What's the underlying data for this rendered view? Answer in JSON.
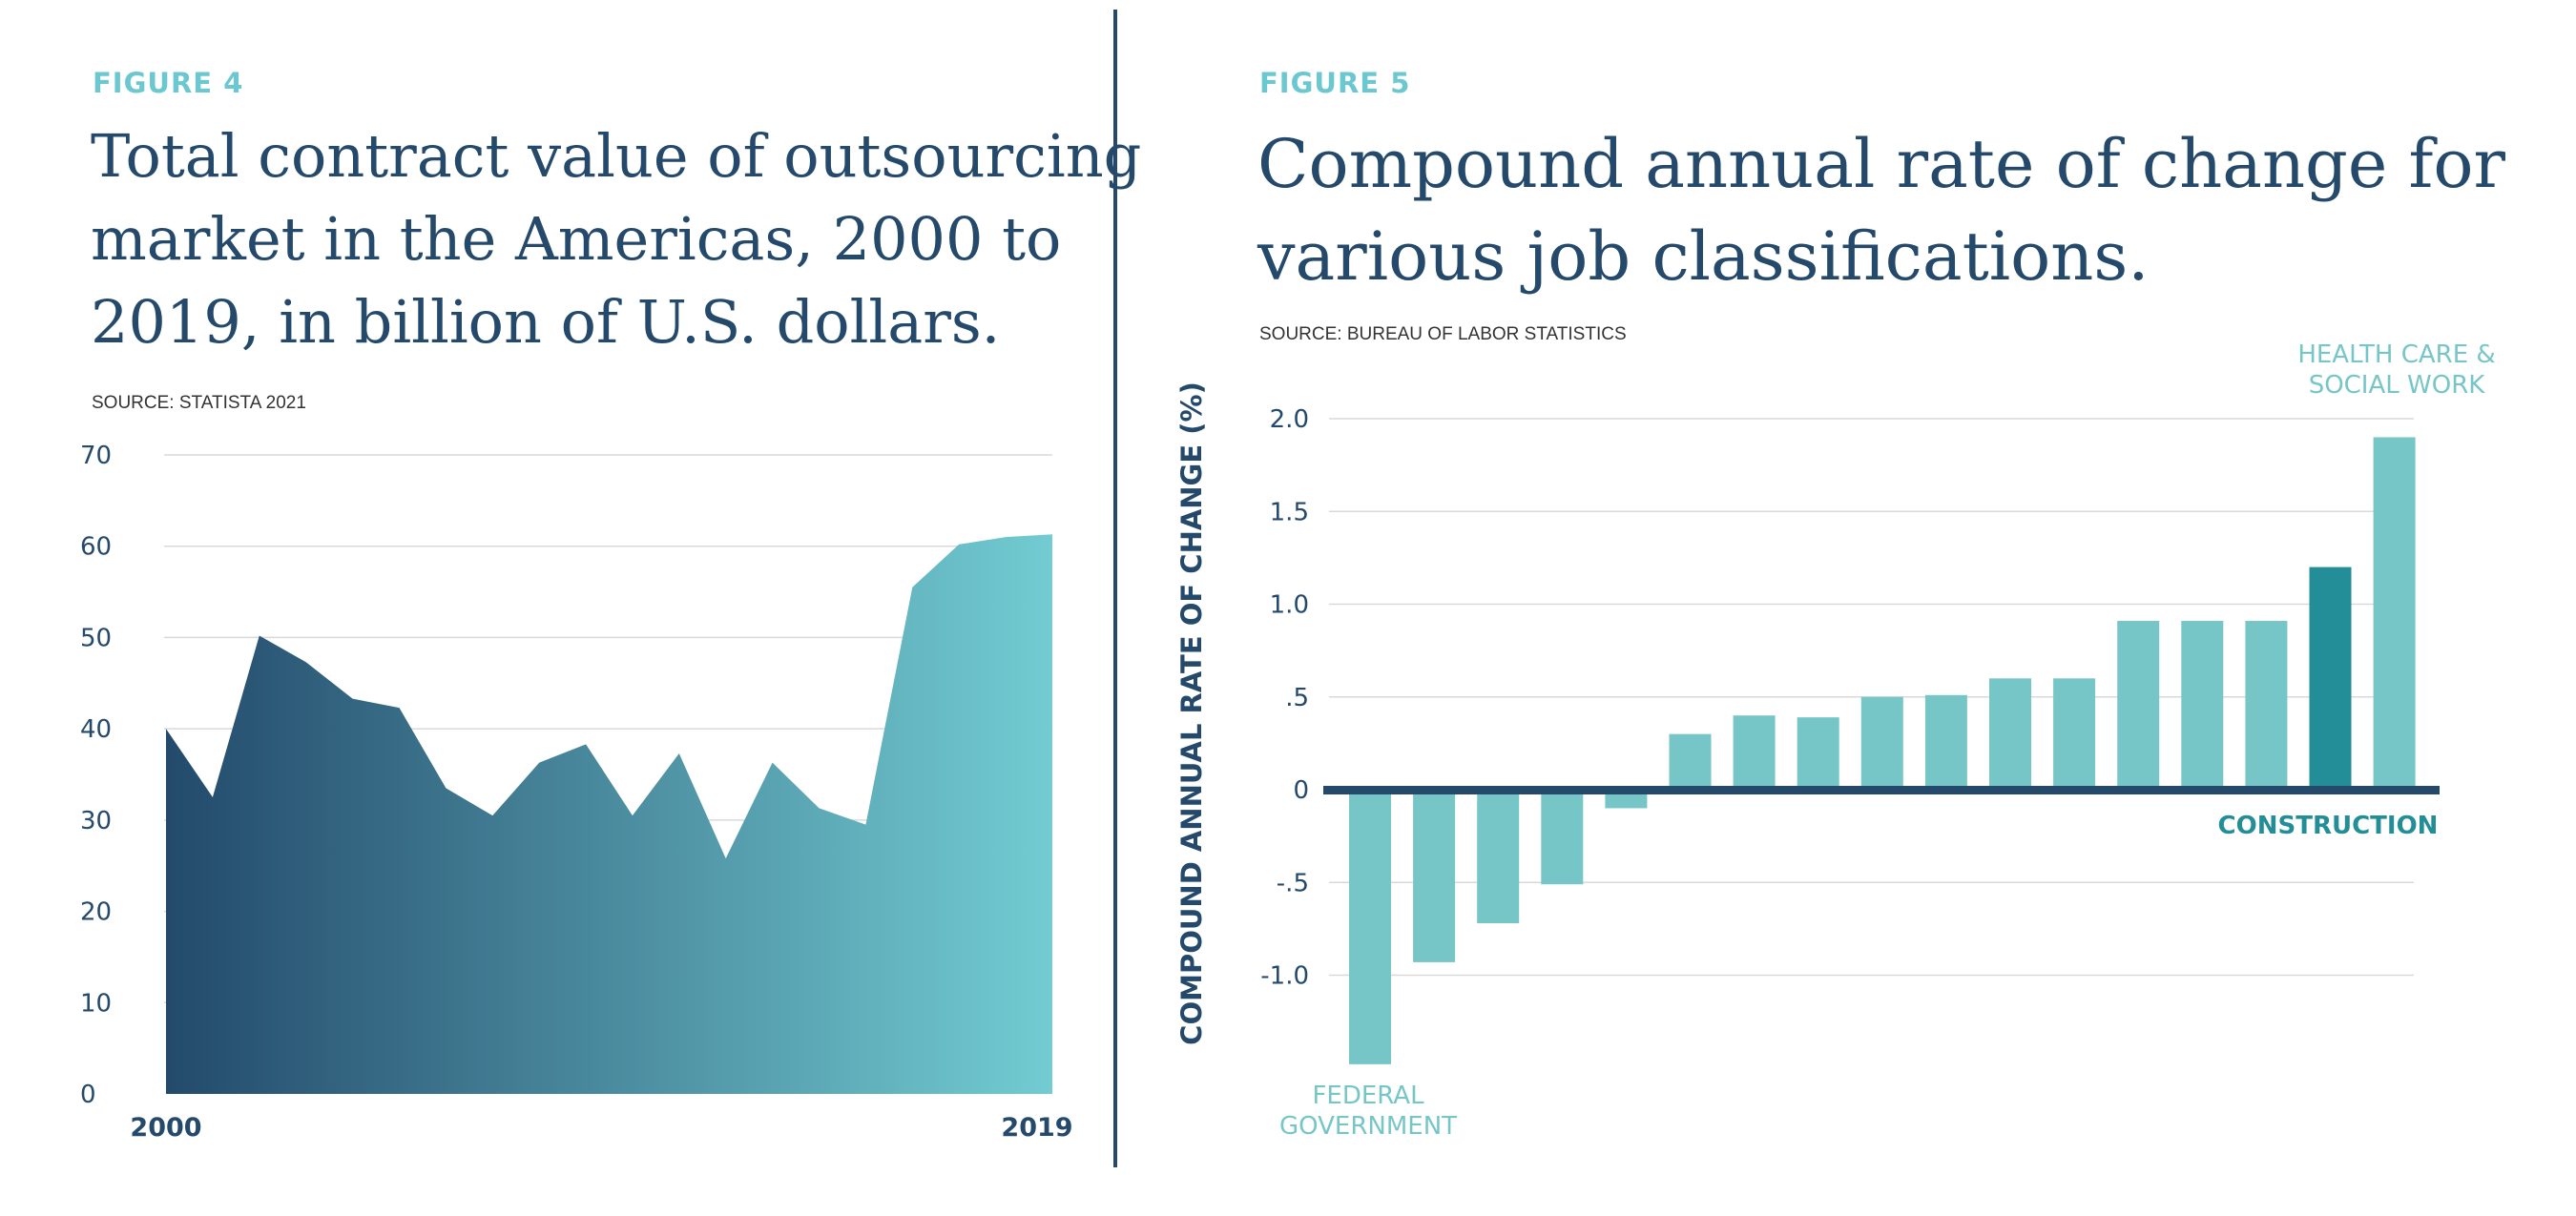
{
  "figure4": {
    "label": "FIGURE 4",
    "title_lines": [
      "Total contract value of outsourcing",
      "market in the Americas, 2000 to",
      "2019, in billion of U.S. dollars."
    ],
    "source": "SOURCE: STATISTA 2021"
  },
  "figure5": {
    "label": "FIGURE 5",
    "title_lines": [
      "Compound annual rate of change for",
      "various job classifications."
    ],
    "source": "SOURCE: BUREAU OF LABOR STATISTICS"
  },
  "colors": {
    "navy": "#24496b",
    "teal_light": "#77c6c7",
    "teal_dark": "#248e98",
    "gradient_start": "#234a6b",
    "gradient_end": "#72ccd2",
    "grid": "#d9d9d9"
  },
  "chart_data": [
    {
      "type": "area",
      "x": [
        2000,
        2001,
        2002,
        2003,
        2004,
        2005,
        2006,
        2007,
        2008,
        2009,
        2010,
        2011,
        2012,
        2013,
        2014,
        2015,
        2016,
        2017,
        2018,
        2019
      ],
      "values": [
        40,
        32.5,
        50.2,
        47.3,
        43.3,
        42.3,
        33.5,
        30.5,
        36.3,
        38.3,
        30.5,
        37.3,
        25.8,
        36.3,
        31.3,
        29.5,
        55.5,
        60.2,
        61,
        61.3
      ],
      "ylim": [
        0,
        70
      ],
      "yticks": [
        0,
        10,
        20,
        30,
        40,
        50,
        60,
        70
      ],
      "xtick_labels": [
        "2000",
        "2019"
      ],
      "grid": true
    },
    {
      "type": "bar",
      "values": [
        -1.48,
        -0.93,
        -0.72,
        -0.51,
        -0.1,
        0.3,
        0.4,
        0.39,
        0.5,
        0.51,
        0.6,
        0.6,
        0.91,
        0.91,
        0.91,
        1.2,
        1.9
      ],
      "highlight_index": 15,
      "ylabel": "COMPOUND ANNUAL RATE OF CHANGE (%)",
      "ylim": [
        -1.5,
        2.0
      ],
      "yticks": [
        2.0,
        1.5,
        1.0,
        0.5,
        0,
        -0.5,
        -1.0
      ],
      "ytick_labels": [
        "2.0",
        "1.5",
        "1.0",
        ".5",
        "0",
        "-.5",
        "-1.0"
      ],
      "grid": true,
      "annotations": [
        {
          "bar_index": 0,
          "lines": [
            "FEDERAL",
            "GOVERNMENT"
          ]
        },
        {
          "bar_index": 16,
          "lines": [
            "HEALTH CARE &",
            "SOCIAL WORK"
          ]
        },
        {
          "bar_index": 15,
          "lines": [
            "CONSTRUCTION"
          ]
        }
      ]
    }
  ]
}
